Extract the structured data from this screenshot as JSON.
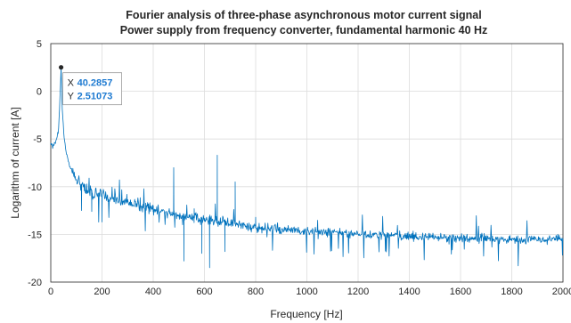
{
  "chart_data": {
    "type": "line",
    "title": "Fourier analysis of three-phase asynchronous motor current signal",
    "subtitle": "Power supply from frequency converter, fundamental harmonic 40 Hz",
    "xlabel": "Frequency [Hz]",
    "ylabel": "Logarithm of current [A]",
    "xlim": [
      0,
      2000
    ],
    "ylim": [
      -20,
      5
    ],
    "x_ticks": [
      "0",
      "200",
      "400",
      "600",
      "800",
      "1000",
      "1200",
      "1400",
      "1600",
      "1800",
      "2000"
    ],
    "y_ticks": [
      "5",
      "0",
      "-5",
      "-10",
      "-15",
      "-20"
    ],
    "grid": true,
    "line_color": "#0072bd",
    "series": [
      {
        "x": [
          0,
          10,
          20,
          30,
          35,
          40.2857,
          45,
          50,
          60,
          80,
          100,
          140,
          200,
          300,
          400,
          500,
          600,
          700,
          800,
          1000,
          1200,
          1400,
          1600,
          1800,
          2000
        ],
        "values": [
          -5.4,
          -5.8,
          -5.3,
          -4.0,
          -1.5,
          2.51073,
          -1.8,
          -4.2,
          -6.5,
          -8.3,
          -9.3,
          -10.4,
          -11.0,
          -11.7,
          -12.4,
          -13.0,
          -13.5,
          -13.8,
          -14.3,
          -14.7,
          -14.9,
          -15.2,
          -15.4,
          -15.5,
          -15.5
        ]
      }
    ],
    "peaks": [
      {
        "x": 480,
        "y": -8.0
      },
      {
        "x": 650,
        "y": -6.7
      },
      {
        "x": 720,
        "y": -9.5
      },
      {
        "x": 400,
        "y": -12.0
      },
      {
        "x": 560,
        "y": -12.3
      },
      {
        "x": 800,
        "y": -13.2
      },
      {
        "x": 160,
        "y": -12.6
      },
      {
        "x": 280,
        "y": -11.6
      }
    ],
    "dips": [
      {
        "x": 620,
        "y": -18.5
      },
      {
        "x": 520,
        "y": -17.8
      },
      {
        "x": 590,
        "y": -17.0
      },
      {
        "x": 680,
        "y": -16.8
      },
      {
        "x": 200,
        "y": -13.7
      },
      {
        "x": 120,
        "y": -12.5
      }
    ],
    "datatip": {
      "x_key": "X",
      "x_value": "40.2857",
      "y_key": "Y",
      "y_value": "2.51073",
      "x": 40.2857,
      "y": 2.51073
    }
  }
}
